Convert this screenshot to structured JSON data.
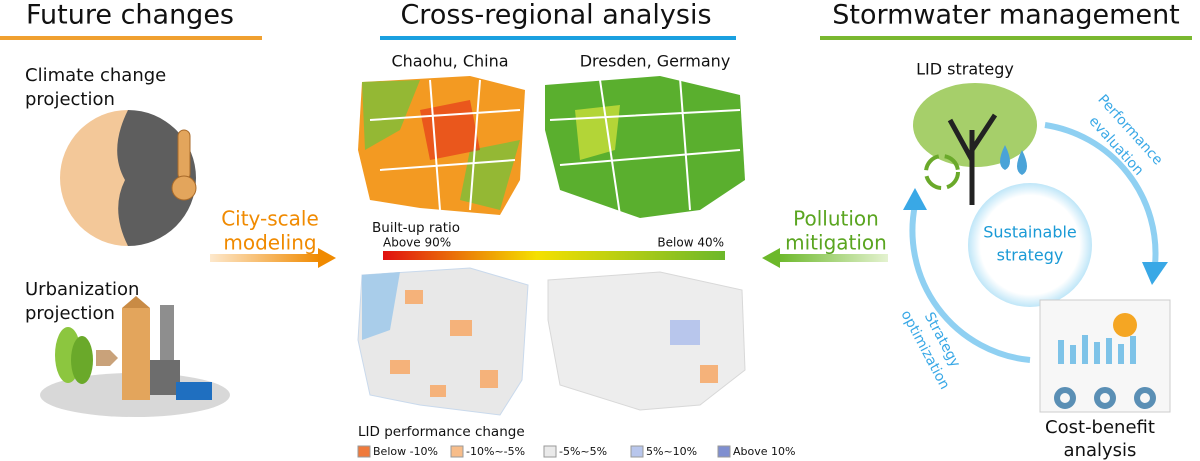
{
  "headers": [
    "Future changes",
    "Cross-regional analysis",
    "Stormwater management"
  ],
  "left": {
    "climate": [
      "Climate change",
      "projection"
    ],
    "urbanization": [
      "Urbanization",
      "projection"
    ]
  },
  "arrows": {
    "modeling": [
      "City-scale",
      "modeling"
    ],
    "mitigation": [
      "Pollution",
      "mitigation"
    ]
  },
  "maps": {
    "cities": [
      "Chaohu, China",
      "Dresden, Germany"
    ],
    "builtup_title": "Built-up ratio",
    "builtup_high": "Above 90%",
    "builtup_low": "Below 40%"
  },
  "lid_legend": {
    "title": "LID performance change",
    "items": [
      {
        "label": "Below -10%",
        "color": "#ef7a3c"
      },
      {
        "label": "-10%~-5%",
        "color": "#f7bd8a"
      },
      {
        "label": "-5%~5%",
        "color": "#eaeaea"
      },
      {
        "label": "5%~10%",
        "color": "#b8c6ec"
      },
      {
        "label": "Above 10%",
        "color": "#7f8fd0"
      }
    ]
  },
  "right": {
    "lid": "LID strategy",
    "evaluation": [
      "Performance",
      "evaluation"
    ],
    "sustainable": [
      "Sustainable",
      "strategy"
    ],
    "optimization": [
      "Strategy",
      "optimization"
    ],
    "cost": [
      "Cost-benefit",
      "analysis"
    ]
  }
}
